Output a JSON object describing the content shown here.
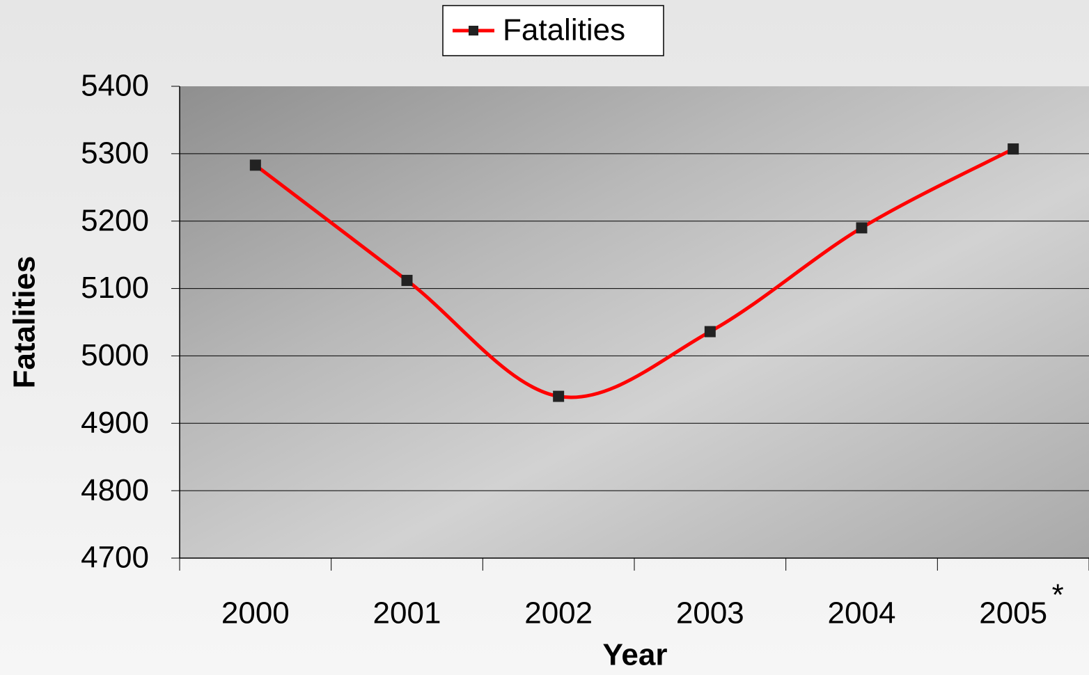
{
  "chart_data": {
    "type": "line",
    "x_label": "Year",
    "y_label": "Fatalities",
    "categories": [
      "2000",
      "2001",
      "2002",
      "2003",
      "2004",
      "2005"
    ],
    "series": [
      {
        "name": "Fatalities",
        "color": "#ff0000",
        "values": [
          5283,
          5112,
          4940,
          5036,
          5190,
          5307
        ]
      }
    ],
    "annotation": "*",
    "ylim": [
      4700,
      5400
    ],
    "yticks": [
      4700,
      4800,
      4900,
      5000,
      5100,
      5200,
      5300,
      5400
    ],
    "grid": true,
    "smooth": true,
    "legend": "top"
  }
}
